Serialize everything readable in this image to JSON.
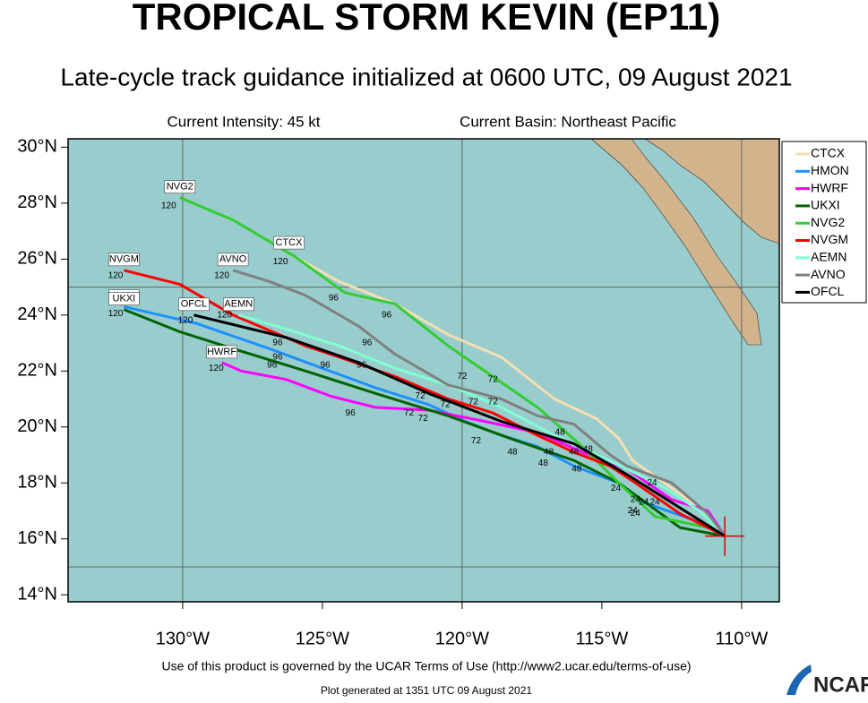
{
  "chart_data": {
    "type": "track",
    "title": "TROPICAL STORM KEVIN (EP11)",
    "subtitle": "Late-cycle track guidance initialized at 0600 UTC, 09 August 2021",
    "intensity": "Current Intensity: 45 kt",
    "basin": "Current Basin: Northeast Pacific",
    "footer": "Use of this product is governed by the UCAR Terms of Use (http://www2.ucar.edu/terms-of-use)",
    "generated": "Plot generated at 1351 UTC   09 August 2021",
    "logo": "NCAR",
    "xlim": [
      -134.1,
      -108.65
    ],
    "ylim": [
      13.75,
      30.3
    ],
    "xticks": [
      {
        "value": -130,
        "label": "130°W"
      },
      {
        "value": -125,
        "label": "125°W"
      },
      {
        "value": -120,
        "label": "120°W"
      },
      {
        "value": -115,
        "label": "115°W"
      },
      {
        "value": -110,
        "label": "110°W"
      }
    ],
    "yticks": [
      {
        "value": 14,
        "label": "14°N"
      },
      {
        "value": 16,
        "label": "16°N"
      },
      {
        "value": 18,
        "label": "18°N"
      },
      {
        "value": 20,
        "label": "20°N"
      },
      {
        "value": 22,
        "label": "22°N"
      },
      {
        "value": 24,
        "label": "24°N"
      },
      {
        "value": 26,
        "label": "26°N"
      },
      {
        "value": 28,
        "label": "28°N"
      },
      {
        "value": 30,
        "label": "30°N"
      }
    ],
    "grid_lon": [
      -130,
      -120,
      -110
    ],
    "grid_lat": [
      15,
      25
    ],
    "start": {
      "lon": -110.6,
      "lat": 16.1
    },
    "series": [
      {
        "name": "CTCX",
        "color": "#f5deb3",
        "lon": [
          -110.6,
          -111.2,
          -113.9,
          -114.4,
          -115.2,
          -116.7,
          -118.6,
          -120.5,
          -122.4,
          -124.4,
          -126.2
        ],
        "lat": [
          16.1,
          16.9,
          18.8,
          19.6,
          20.3,
          21.0,
          22.5,
          23.3,
          24.4,
          25.2,
          26.2
        ]
      },
      {
        "name": "HMON",
        "color": "#1e90ff",
        "lon": [
          -110.6,
          -111.5,
          -113.5,
          -114.4,
          -116.0,
          -117.3,
          -118.6,
          -119.9,
          -121.2,
          -123.1,
          -125.0,
          -126.9,
          -129.5,
          -132.1
        ],
        "lat": [
          16.1,
          16.6,
          17.3,
          18.0,
          18.6,
          19.3,
          19.7,
          20.2,
          20.8,
          21.4,
          22.1,
          22.8,
          23.7,
          24.3
        ]
      },
      {
        "name": "HWRF",
        "color": "#ff00ff",
        "lon": [
          -110.6,
          -111.2,
          -112.5,
          -114.1,
          -115.7,
          -117.3,
          -119.2,
          -121.2,
          -123.1,
          -124.7,
          -126.3,
          -127.9,
          -128.6
        ],
        "lat": [
          16.1,
          17.0,
          17.4,
          18.5,
          19.1,
          19.8,
          20.2,
          20.6,
          20.7,
          21.1,
          21.7,
          22.0,
          22.3
        ]
      },
      {
        "name": "UKXI",
        "color": "#006400",
        "lon": [
          -110.6,
          -112.2,
          -114.4,
          -116.0,
          -118.3,
          -120.5,
          -123.1,
          -125.6,
          -128.2,
          -130.1,
          -132.1
        ],
        "lat": [
          16.1,
          16.4,
          18.0,
          18.8,
          19.6,
          20.4,
          21.2,
          22.0,
          22.8,
          23.4,
          24.2
        ]
      },
      {
        "name": "NVG2",
        "color": "#32cd32",
        "lon": [
          -110.6,
          -111.2,
          -113.1,
          -114.4,
          -115.7,
          -117.3,
          -118.9,
          -120.5,
          -122.4,
          -124.2,
          -126.0,
          -128.2,
          -130.1
        ],
        "lat": [
          16.1,
          16.4,
          16.8,
          18.0,
          19.3,
          20.7,
          21.8,
          22.9,
          24.4,
          24.8,
          26.1,
          27.4,
          28.2
        ]
      },
      {
        "name": "NVGM",
        "color": "#ff0000",
        "lon": [
          -110.6,
          -112.2,
          -113.8,
          -114.7,
          -116.0,
          -117.3,
          -118.9,
          -120.5,
          -122.4,
          -124.4,
          -125.6,
          -128.2,
          -130.1,
          -132.1
        ],
        "lat": [
          16.1,
          16.9,
          18.0,
          18.6,
          19.1,
          19.7,
          20.5,
          21.0,
          21.8,
          22.5,
          22.9,
          24.0,
          25.1,
          25.6
        ]
      },
      {
        "name": "AEMN",
        "color": "#7fffd4",
        "lon": [
          -110.6,
          -111.5,
          -112.7,
          -114.1,
          -115.4,
          -116.7,
          -118.6,
          -120.5,
          -122.4,
          -124.4,
          -126.3,
          -128.0
        ],
        "lat": [
          16.1,
          17.0,
          17.8,
          18.5,
          19.1,
          19.7,
          20.7,
          21.5,
          22.1,
          22.9,
          23.5,
          24.0
        ]
      },
      {
        "name": "AVNO",
        "color": "#808080",
        "lon": [
          -110.6,
          -111.2,
          -112.5,
          -114.1,
          -114.7,
          -116.0,
          -117.3,
          -118.6,
          -120.5,
          -122.4,
          -123.7,
          -125.6,
          -126.9,
          -128.2
        ],
        "lat": [
          16.1,
          16.9,
          18.0,
          18.6,
          19.0,
          20.1,
          20.4,
          21.0,
          21.5,
          22.6,
          23.6,
          24.7,
          25.2,
          25.6
        ]
      },
      {
        "name": "OFCL",
        "color": "#000000",
        "lon": [
          -110.6,
          -114.1,
          -116.0,
          -118.6,
          -121.2,
          -123.7,
          -126.3,
          -129.6
        ],
        "lat": [
          16.1,
          18.3,
          19.4,
          20.2,
          21.2,
          22.3,
          23.2,
          24.0
        ]
      }
    ],
    "hour_labels": [
      {
        "hour": 120,
        "lon": -130.5,
        "lat": 27.9
      },
      {
        "hour": 120,
        "lon": -132.4,
        "lat": 25.4
      },
      {
        "hour": 120,
        "lon": -132.4,
        "lat": 24.05
      },
      {
        "hour": 120,
        "lon": -129.9,
        "lat": 23.8
      },
      {
        "hour": 120,
        "lon": -128.6,
        "lat": 25.4
      },
      {
        "hour": 120,
        "lon": -128.5,
        "lat": 24.0
      },
      {
        "hour": 120,
        "lon": -126.5,
        "lat": 25.9
      },
      {
        "hour": 120,
        "lon": -128.8,
        "lat": 22.1
      },
      {
        "hour": 96,
        "lon": -124.6,
        "lat": 24.6
      },
      {
        "hour": 96,
        "lon": -122.7,
        "lat": 24.0
      },
      {
        "hour": 96,
        "lon": -123.4,
        "lat": 23.0
      },
      {
        "hour": 96,
        "lon": -126.6,
        "lat": 23.0
      },
      {
        "hour": 96,
        "lon": -126.6,
        "lat": 22.5
      },
      {
        "hour": 96,
        "lon": -126.8,
        "lat": 22.2
      },
      {
        "hour": 96,
        "lon": -124.9,
        "lat": 22.2
      },
      {
        "hour": 96,
        "lon": -123.6,
        "lat": 22.2
      },
      {
        "hour": 96,
        "lon": -124.0,
        "lat": 20.5
      },
      {
        "hour": 72,
        "lon": -120.0,
        "lat": 21.8
      },
      {
        "hour": 72,
        "lon": -118.9,
        "lat": 21.7
      },
      {
        "hour": 72,
        "lon": -121.5,
        "lat": 21.1
      },
      {
        "hour": 72,
        "lon": -120.6,
        "lat": 20.8
      },
      {
        "hour": 72,
        "lon": -121.9,
        "lat": 20.5
      },
      {
        "hour": 72,
        "lon": -121.4,
        "lat": 20.3
      },
      {
        "hour": 72,
        "lon": -119.6,
        "lat": 20.9
      },
      {
        "hour": 72,
        "lon": -118.9,
        "lat": 20.9
      },
      {
        "hour": 72,
        "lon": -119.5,
        "lat": 19.5
      },
      {
        "hour": 48,
        "lon": -116.5,
        "lat": 19.8
      },
      {
        "hour": 48,
        "lon": -115.5,
        "lat": 19.2
      },
      {
        "hour": 48,
        "lon": -118.2,
        "lat": 19.1
      },
      {
        "hour": 48,
        "lon": -116.9,
        "lat": 19.1
      },
      {
        "hour": 48,
        "lon": -116.0,
        "lat": 19.1
      },
      {
        "hour": 48,
        "lon": -117.1,
        "lat": 18.7
      },
      {
        "hour": 48,
        "lon": -115.9,
        "lat": 18.5
      },
      {
        "hour": 24,
        "lon": -113.2,
        "lat": 18.0
      },
      {
        "hour": 24,
        "lon": -114.5,
        "lat": 17.8
      },
      {
        "hour": 24,
        "lon": -113.8,
        "lat": 17.4
      },
      {
        "hour": 24,
        "lon": -113.5,
        "lat": 17.3
      },
      {
        "hour": 24,
        "lon": -113.1,
        "lat": 17.3
      },
      {
        "hour": 24,
        "lon": -113.9,
        "lat": 17.0
      },
      {
        "hour": 24,
        "lon": -113.8,
        "lat": 16.9
      }
    ]
  }
}
